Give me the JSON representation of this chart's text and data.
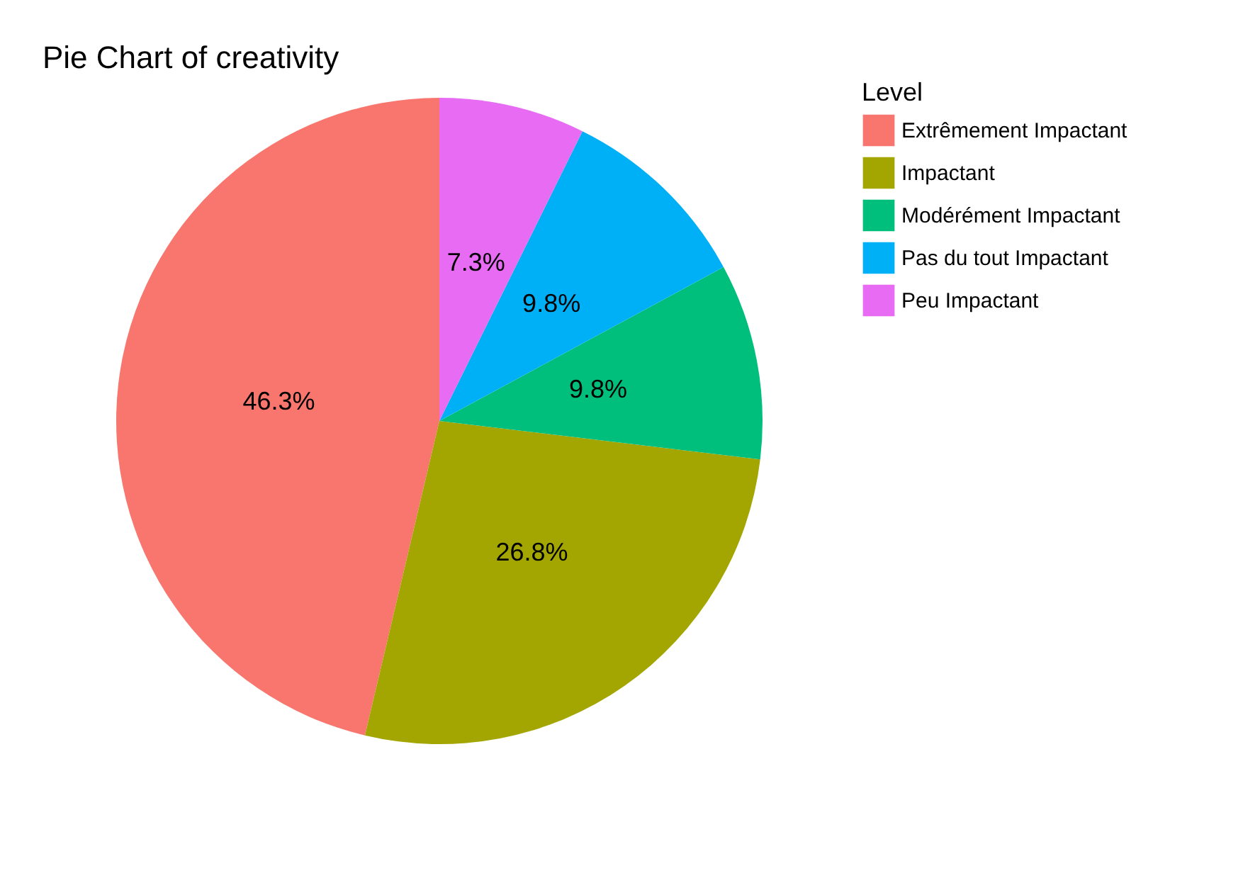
{
  "chart_data": {
    "type": "pie",
    "title": "Pie Chart of creativity",
    "legend_title": "Level",
    "categories": [
      "Extrêmement Impactant",
      "Impactant",
      "Modérément Impactant",
      "Pas du tout Impactant",
      "Peu Impactant"
    ],
    "values": [
      46.3,
      26.8,
      9.8,
      9.8,
      7.3
    ],
    "colors": [
      "#f8766d",
      "#a3a500",
      "#00bf7d",
      "#00b0f6",
      "#e76bf3"
    ],
    "value_labels": [
      "46.3%",
      "26.8%",
      "9.8%",
      "9.8%",
      "7.3%"
    ],
    "legend": "right"
  }
}
